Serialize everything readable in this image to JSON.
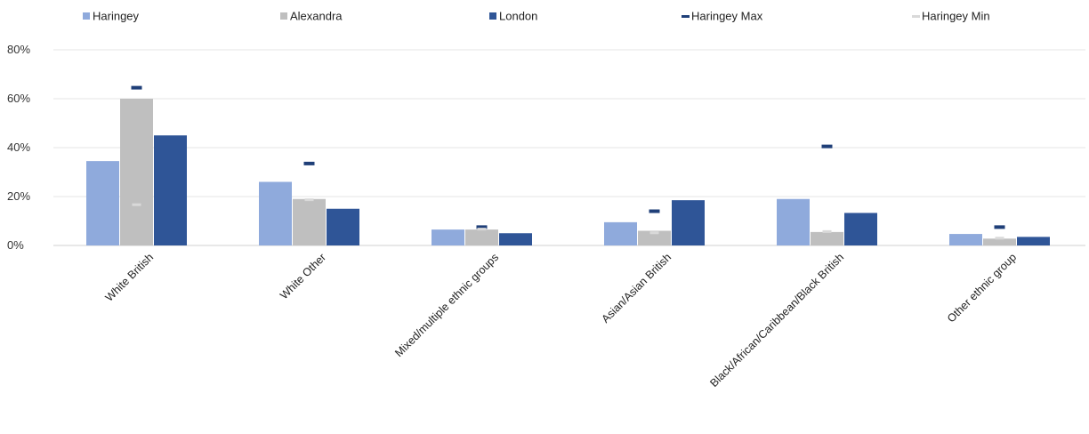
{
  "chart_data": {
    "type": "bar",
    "categories": [
      "White British",
      "White Other",
      "Mixed/multiple ethnic groups",
      "Asian/Asian British",
      "Black/African/Caribbean/Black British",
      "Other ethnic group"
    ],
    "series": [
      {
        "name": "Haringey",
        "values": [
          0.345,
          0.26,
          0.065,
          0.095,
          0.19,
          0.047
        ],
        "color": "#8FAADC"
      },
      {
        "name": "Alexandra",
        "values": [
          0.6,
          0.19,
          0.065,
          0.06,
          0.055,
          0.028
        ],
        "color": "#BFBFBF"
      },
      {
        "name": "London",
        "values": [
          0.45,
          0.15,
          0.05,
          0.185,
          0.133,
          0.035
        ],
        "color": "#2F5597"
      }
    ],
    "markers": [
      {
        "name": "Haringey Max",
        "values": [
          0.645,
          0.335,
          0.075,
          0.14,
          0.405,
          0.075
        ],
        "color": "#1F3F78"
      },
      {
        "name": "Haringey Min",
        "values": [
          0.165,
          0.185,
          0.065,
          0.05,
          0.055,
          0.028
        ],
        "color": "#D9D9D9"
      }
    ],
    "yticks": [
      "0%",
      "20%",
      "40%",
      "60%",
      "80%"
    ],
    "ylim": [
      0,
      0.8
    ],
    "grid": true,
    "legend_position": "top"
  }
}
